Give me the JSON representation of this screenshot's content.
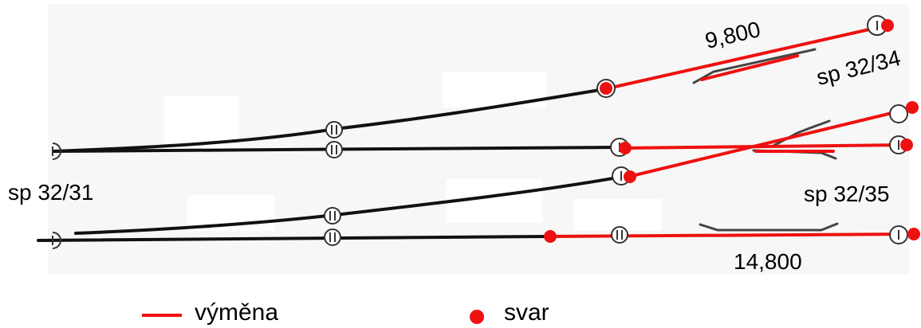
{
  "labels": {
    "left_switch": "sp 32/31",
    "top_right_switch": "sp 32/34",
    "right_switch": "sp 32/35",
    "top_length": "9,800",
    "bottom_length": "14,800"
  },
  "legend": {
    "line_label": "výměna",
    "dot_label": "svar"
  },
  "colors": {
    "track": "#111111",
    "replacement": "#ee1111",
    "weld": "#ee1111",
    "symbol": "#333333"
  },
  "icons": {
    "joint": "circle-double-bar-icon",
    "end": "circle-single-bar-icon",
    "weld": "red-dot-icon"
  }
}
